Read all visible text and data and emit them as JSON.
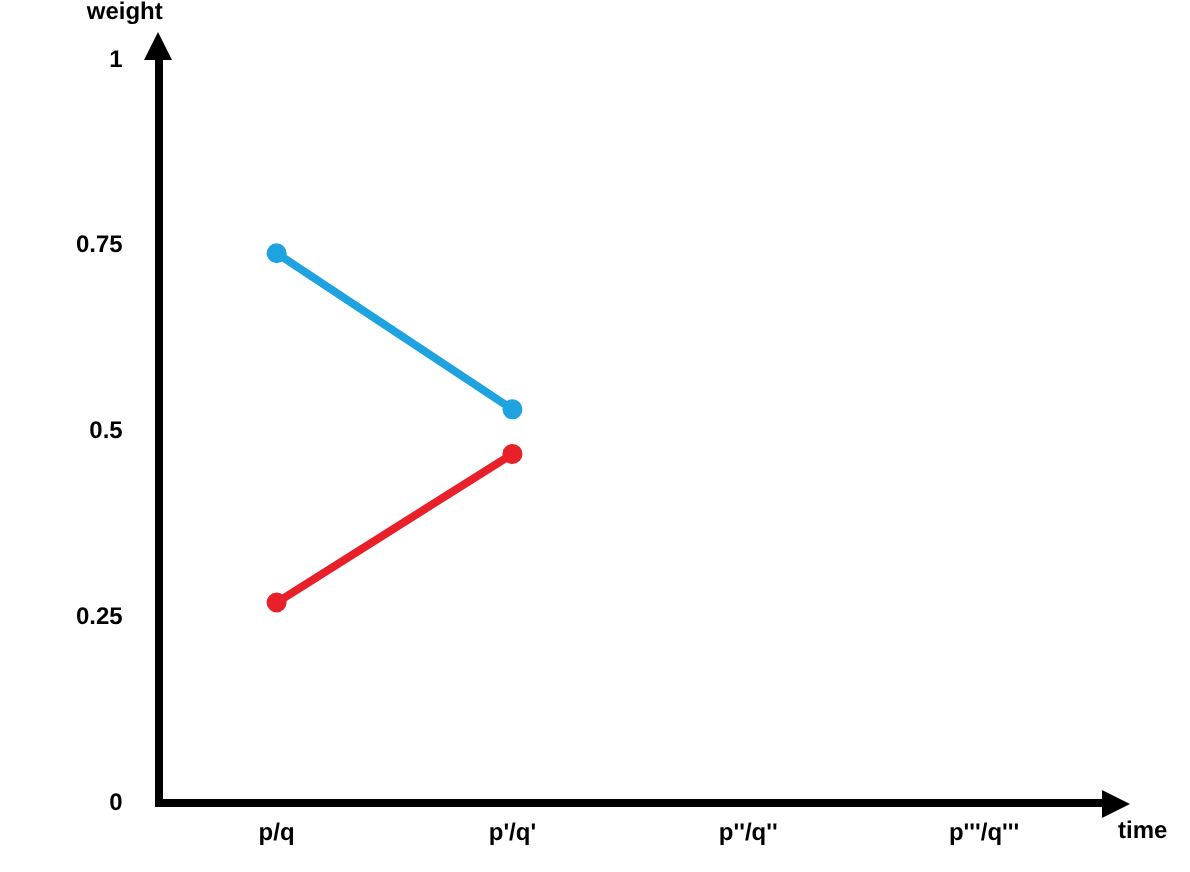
{
  "chart_data": {
    "type": "line",
    "xlabel": "time",
    "ylabel": "weight",
    "categories": [
      "p/q",
      "p'/q'",
      "p''/q''",
      "p'''/q'''"
    ],
    "series": [
      {
        "color": "#1fa3e0",
        "values": [
          0.74,
          0.53,
          null,
          null
        ]
      },
      {
        "color": "#e8202a",
        "values": [
          0.27,
          0.47,
          null,
          null
        ]
      }
    ],
    "ylim": [
      0,
      1
    ],
    "yticks": [
      0,
      0.25,
      0.5,
      0.75,
      1
    ],
    "grid": false,
    "legend": false,
    "marker": "circle",
    "line_style": "solid"
  }
}
